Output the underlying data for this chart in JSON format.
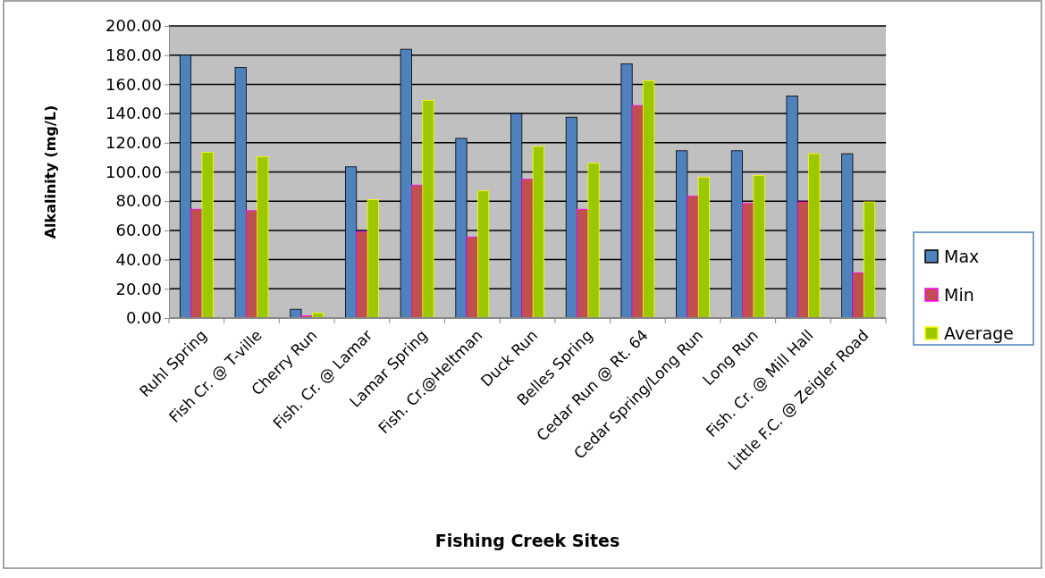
{
  "chart_data": {
    "type": "bar",
    "xlabel": "Fishing Creek Sites",
    "ylabel": "Alkalinity (mg/L)",
    "categories": [
      "Ruhl Spring",
      "Fish Cr. @ T-ville",
      "Cherry Run",
      "Fish. Cr. @ Lamar",
      "Lamar Spring",
      "Fish. Cr.@Heltman",
      "Duck Run",
      "Belles Spring",
      "Cedar Run @ Rt. 64",
      "Cedar Spring/Long Run",
      "Long Run",
      "Fish. Cr. @ Mill Hall",
      "Little F.C. @ Zeigler Road"
    ],
    "series": [
      {
        "name": "Max",
        "color": "#4f81bd",
        "values": [
          180,
          171.5,
          6,
          103.5,
          184,
          123,
          140,
          137.5,
          174,
          114.5,
          114.5,
          152,
          112.5
        ]
      },
      {
        "name": "Min",
        "color": "#c0504d",
        "values": [
          74.5,
          73.5,
          1.5,
          59,
          91,
          55.5,
          95,
          74.5,
          145.5,
          83.5,
          78.5,
          79.5,
          31
        ]
      },
      {
        "name": "Average",
        "color": "#9bc800",
        "values": [
          113.5,
          110.5,
          3.5,
          81,
          149,
          87,
          117.5,
          106,
          162.5,
          96.5,
          97.5,
          112.5,
          79.5
        ]
      }
    ],
    "ylim": [
      0,
      200
    ],
    "yticks": [
      {
        "value": 0,
        "label": "0.00"
      },
      {
        "value": 20,
        "label": "20.00"
      },
      {
        "value": 40,
        "label": "40.00"
      },
      {
        "value": 60,
        "label": "60.00"
      },
      {
        "value": 80,
        "label": "80.00"
      },
      {
        "value": 100,
        "label": "100.00"
      },
      {
        "value": 120,
        "label": "120.00"
      },
      {
        "value": 140,
        "label": "140.00"
      },
      {
        "value": 160,
        "label": "160.00"
      },
      {
        "value": 180,
        "label": "180.00"
      },
      {
        "value": 200,
        "label": "200.00"
      }
    ],
    "grid": "y",
    "legend": "right"
  }
}
